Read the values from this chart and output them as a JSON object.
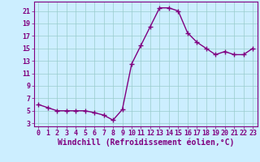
{
  "x": [
    0,
    1,
    2,
    3,
    4,
    5,
    6,
    7,
    8,
    9,
    10,
    11,
    12,
    13,
    14,
    15,
    16,
    17,
    18,
    19,
    20,
    21,
    22,
    23
  ],
  "y": [
    6.0,
    5.5,
    5.0,
    5.0,
    5.0,
    5.0,
    4.7,
    4.3,
    3.5,
    5.2,
    12.5,
    15.5,
    18.5,
    21.5,
    21.5,
    21.0,
    17.5,
    16.0,
    15.0,
    14.0,
    14.5,
    14.0,
    14.0,
    15.0
  ],
  "line_color": "#800080",
  "marker_color": "#800080",
  "bg_color": "#cceeff",
  "grid_color": "#99cccc",
  "xlabel": "Windchill (Refroidissement éolien,°C)",
  "xlim": [
    -0.5,
    23.5
  ],
  "ylim": [
    2.5,
    22.5
  ],
  "yticks": [
    3,
    5,
    7,
    9,
    11,
    13,
    15,
    17,
    19,
    21
  ],
  "xticks": [
    0,
    1,
    2,
    3,
    4,
    5,
    6,
    7,
    8,
    9,
    10,
    11,
    12,
    13,
    14,
    15,
    16,
    17,
    18,
    19,
    20,
    21,
    22,
    23
  ],
  "tick_color": "#800080",
  "spine_color": "#800080",
  "xlabel_color": "#800080",
  "xlabel_fontsize": 7.0,
  "tick_fontsize": 6.0,
  "linewidth": 1.0,
  "markersize": 2.0
}
